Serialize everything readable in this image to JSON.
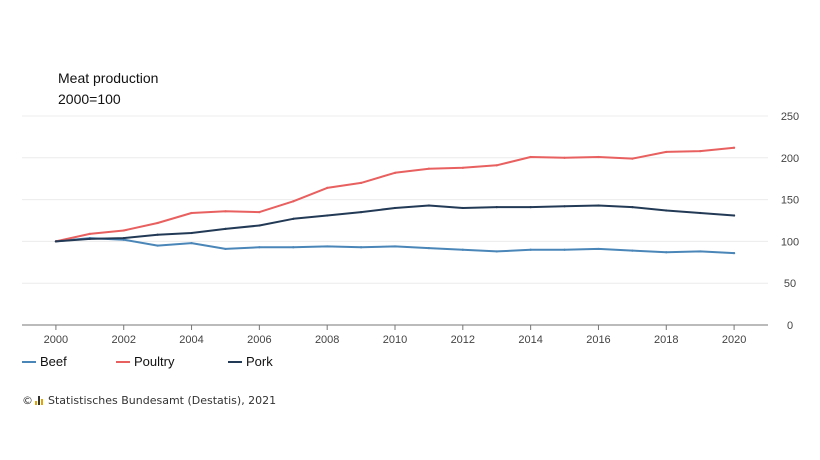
{
  "chart_data": {
    "type": "line",
    "title": "Meat production",
    "subtitle": "2000=100",
    "x": [
      2000,
      2001,
      2002,
      2003,
      2004,
      2005,
      2006,
      2007,
      2008,
      2009,
      2010,
      2011,
      2012,
      2013,
      2014,
      2015,
      2016,
      2017,
      2018,
      2019,
      2020
    ],
    "x_ticks": [
      "2000",
      "2002",
      "2004",
      "2006",
      "2008",
      "2010",
      "2012",
      "2014",
      "2016",
      "2018",
      "2020"
    ],
    "y_ticks": [
      "0",
      "50",
      "100",
      "150",
      "200",
      "250"
    ],
    "ylim": [
      0,
      250
    ],
    "xlim": [
      1999.0,
      2021.0
    ],
    "grid": true,
    "y_axis_side": "right",
    "legend_position": "bottom-left",
    "series": [
      {
        "name": "Beef",
        "color": "#4a86b8",
        "values": [
          100,
          104,
          102,
          95,
          98,
          91,
          93,
          93,
          94,
          93,
          94,
          92,
          90,
          88,
          90,
          90,
          91,
          89,
          87,
          88,
          86
        ]
      },
      {
        "name": "Poultry",
        "color": "#e8605f",
        "values": [
          100,
          109,
          113,
          122,
          134,
          136,
          135,
          148,
          164,
          170,
          182,
          187,
          188,
          191,
          201,
          200,
          201,
          199,
          207,
          208,
          212
        ]
      },
      {
        "name": "Pork",
        "color": "#233a56",
        "values": [
          100,
          103,
          104,
          108,
          110,
          115,
          119,
          127,
          131,
          135,
          140,
          143,
          140,
          141,
          141,
          142,
          143,
          141,
          137,
          134,
          131
        ]
      }
    ]
  },
  "credit": {
    "copyright_symbol": "©",
    "text": "Statistisches Bundesamt (Destatis), 2021"
  }
}
